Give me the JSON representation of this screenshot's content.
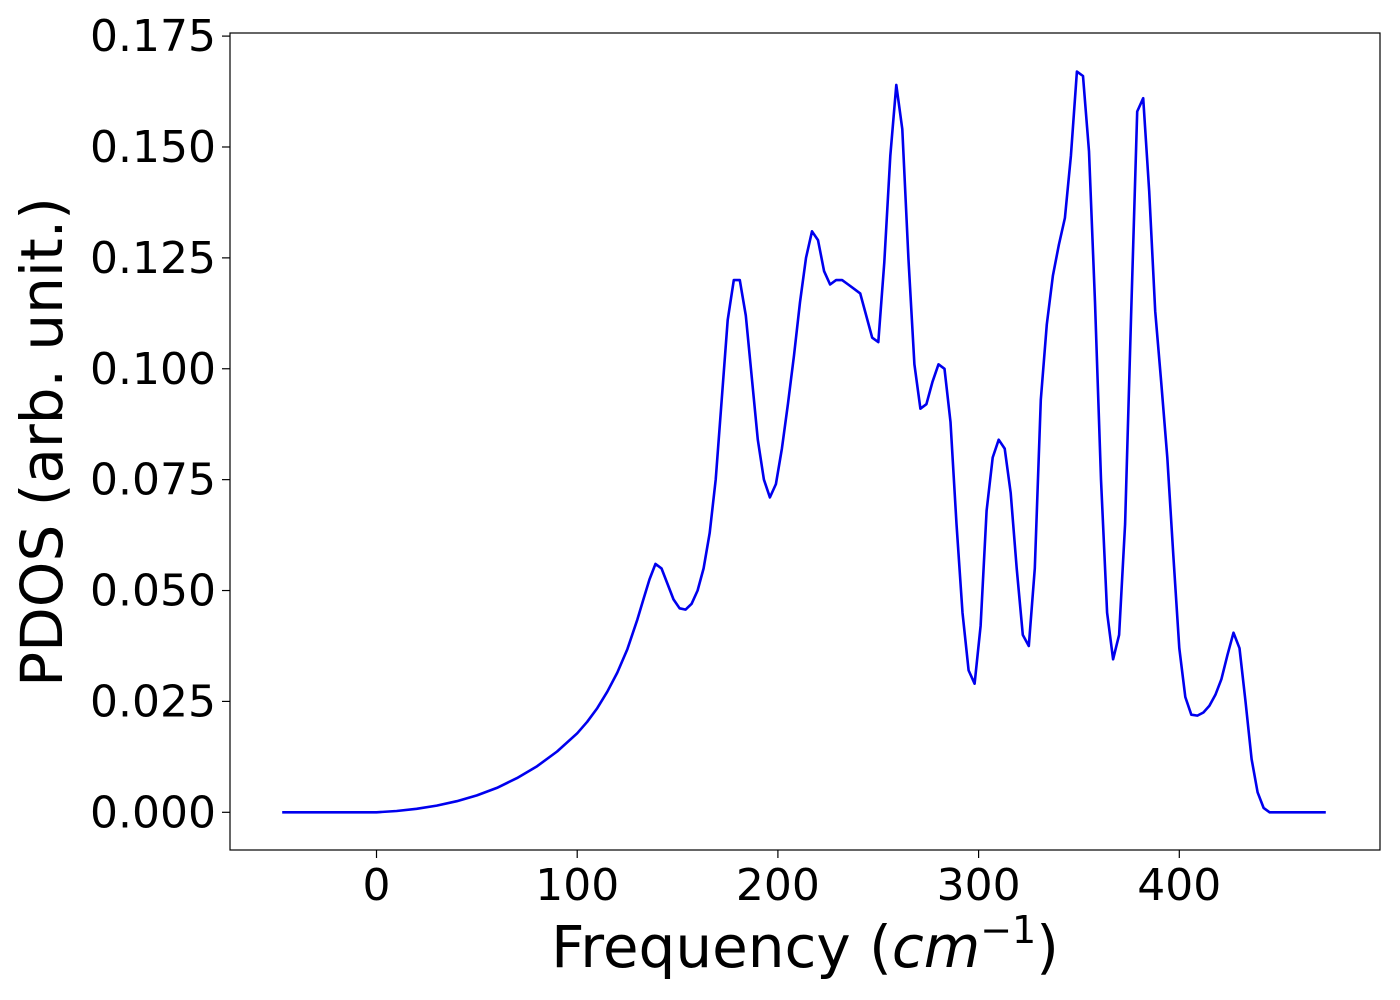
{
  "chart_data": {
    "type": "line",
    "xlabel_main": "Frequency (",
    "xlabel_unit": "cm",
    "xlabel_exp": "−1",
    "xlabel_close": ")",
    "ylabel": "PDOS (arb. unit.)",
    "xlim": [
      -73,
      500
    ],
    "ylim": [
      -0.0085,
      0.1757
    ],
    "xticks": [
      0,
      100,
      200,
      300,
      400
    ],
    "xtick_labels": [
      "0",
      "100",
      "200",
      "300",
      "400"
    ],
    "yticks": [
      0.0,
      0.025,
      0.05,
      0.075,
      0.1,
      0.125,
      0.15,
      0.175
    ],
    "ytick_labels": [
      "0.000",
      "0.025",
      "0.050",
      "0.075",
      "0.100",
      "0.125",
      "0.150",
      "0.175"
    ],
    "grid": false,
    "series": [
      {
        "color": "#0000ee",
        "x": [
          -47,
          -30,
          -10,
          0,
          10,
          20,
          30,
          40,
          50,
          60,
          70,
          80,
          90,
          100,
          105,
          110,
          115,
          120,
          125,
          130,
          133,
          136,
          139,
          142,
          145,
          148,
          151,
          154,
          157,
          160,
          163,
          166,
          169,
          172,
          175,
          178,
          181,
          184,
          187,
          190,
          193,
          196,
          199,
          202,
          205,
          208,
          211,
          214,
          217,
          220,
          223,
          226,
          229,
          232,
          235,
          238,
          241,
          244,
          247,
          250,
          253,
          256,
          259,
          262,
          265,
          268,
          271,
          274,
          277,
          280,
          283,
          286,
          289,
          292,
          295,
          298,
          301,
          304,
          307,
          310,
          313,
          316,
          319,
          322,
          325,
          328,
          331,
          334,
          337,
          340,
          343,
          346,
          349,
          352,
          355,
          358,
          361,
          364,
          367,
          370,
          373,
          376,
          379,
          382,
          385,
          388,
          391,
          394,
          397,
          400,
          403,
          406,
          409,
          412,
          415,
          418,
          421,
          424,
          427,
          430,
          433,
          436,
          439,
          442,
          445,
          450,
          460,
          473
        ],
        "y": [
          0.0,
          0.0,
          0.0,
          0.0,
          0.0003,
          0.0008,
          0.0015,
          0.0025,
          0.0038,
          0.0055,
          0.0077,
          0.0104,
          0.0137,
          0.0178,
          0.0204,
          0.0235,
          0.0272,
          0.0315,
          0.0368,
          0.0435,
          0.048,
          0.0525,
          0.056,
          0.055,
          0.0515,
          0.048,
          0.046,
          0.0457,
          0.047,
          0.05,
          0.055,
          0.063,
          0.075,
          0.093,
          0.111,
          0.12,
          0.12,
          0.112,
          0.098,
          0.084,
          0.075,
          0.071,
          0.074,
          0.082,
          0.092,
          0.103,
          0.115,
          0.125,
          0.131,
          0.129,
          0.122,
          0.119,
          0.12,
          0.12,
          0.119,
          0.118,
          0.117,
          0.112,
          0.107,
          0.106,
          0.124,
          0.148,
          0.164,
          0.154,
          0.125,
          0.101,
          0.091,
          0.092,
          0.097,
          0.101,
          0.1,
          0.088,
          0.065,
          0.045,
          0.032,
          0.029,
          0.042,
          0.068,
          0.08,
          0.084,
          0.082,
          0.072,
          0.055,
          0.04,
          0.0375,
          0.055,
          0.093,
          0.11,
          0.121,
          0.128,
          0.134,
          0.148,
          0.167,
          0.166,
          0.149,
          0.115,
          0.075,
          0.045,
          0.0345,
          0.04,
          0.065,
          0.112,
          0.158,
          0.161,
          0.14,
          0.113,
          0.097,
          0.08,
          0.058,
          0.037,
          0.026,
          0.022,
          0.0218,
          0.0225,
          0.024,
          0.0265,
          0.03,
          0.0355,
          0.0405,
          0.037,
          0.025,
          0.012,
          0.0045,
          0.001,
          0.0,
          0.0,
          0.0,
          0.0
        ]
      }
    ]
  }
}
